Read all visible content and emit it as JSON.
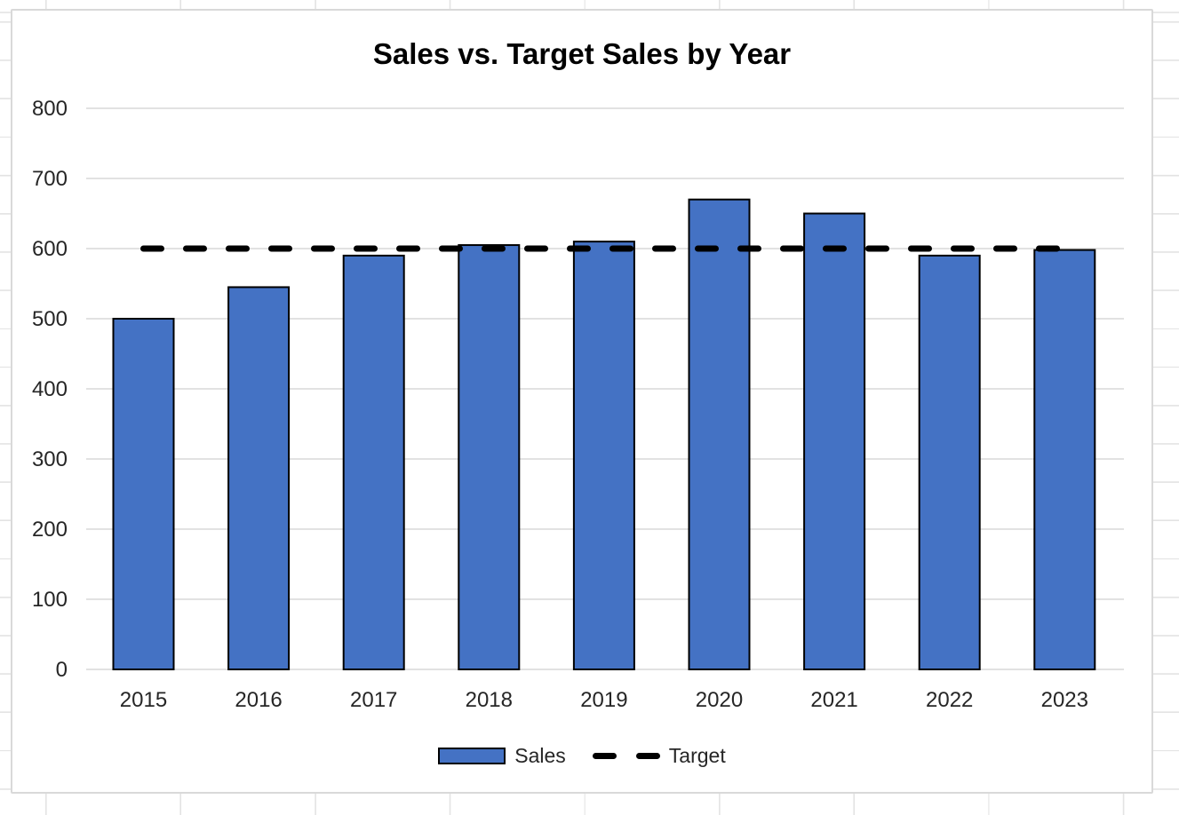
{
  "chart": {
    "title": "Sales vs. Target Sales by Year",
    "legend": {
      "sales_label": "Sales",
      "target_label": "Target"
    }
  },
  "chart_data": {
    "type": "bar",
    "title": "Sales vs. Target Sales by Year",
    "categories": [
      "2015",
      "2016",
      "2017",
      "2018",
      "2019",
      "2020",
      "2021",
      "2022",
      "2023"
    ],
    "series": [
      {
        "name": "Sales",
        "type": "bar",
        "values": [
          500,
          545,
          590,
          605,
          610,
          670,
          650,
          590,
          598
        ]
      },
      {
        "name": "Target",
        "type": "line",
        "dashed": true,
        "values": [
          600,
          600,
          600,
          600,
          600,
          600,
          600,
          600,
          600
        ]
      }
    ],
    "xlabel": "",
    "ylabel": "",
    "ylim": [
      0,
      800
    ],
    "yticks": [
      0,
      100,
      200,
      300,
      400,
      500,
      600,
      700,
      800
    ],
    "grid": true,
    "legend_position": "bottom",
    "colors": {
      "sales_fill": "#4472C4",
      "bar_border": "#000000",
      "target_line": "#000000",
      "gridline": "#D9D9D9",
      "axis_text": "#262626",
      "title_text": "#000000",
      "chart_border": "#D9D9D9",
      "chart_background": "#FFFFFF",
      "sheet_gridline": "#E3E3E3"
    }
  }
}
